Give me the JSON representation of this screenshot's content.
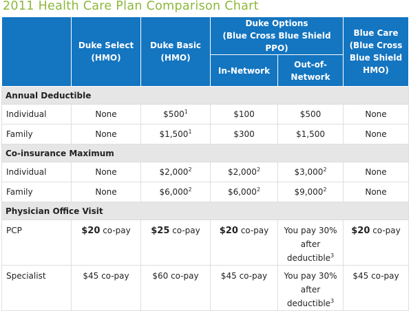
{
  "title": "2011 Health Care Plan Comparison Chart",
  "header": {
    "duke_select": [
      "Duke Select",
      "(HMO)"
    ],
    "duke_basic": [
      "Duke Basic",
      "(HMO)"
    ],
    "duke_options": [
      "Duke Options",
      "(Blue Cross Blue Shield PPO)"
    ],
    "in_network": "In-Network",
    "out_network": [
      "Out-of-",
      "Network"
    ],
    "blue_care": [
      "Blue Care",
      "(Blue Cross",
      "Blue Shield",
      "HMO)"
    ]
  },
  "sections": {
    "annual_deductible": "Annual Deductible",
    "coinsurance_max": "Co-insurance Maximum",
    "physician_visit": "Physician Office Visit"
  },
  "rows": {
    "ded_individual": {
      "label": "Individual",
      "select": "None",
      "basic": "$500",
      "basic_sup": "1",
      "in": "$100",
      "out": "$500",
      "care": "None"
    },
    "ded_family": {
      "label": "Family",
      "select": "None",
      "basic": "$1,500",
      "basic_sup": "1",
      "in": "$300",
      "out": "$1,500",
      "care": "None"
    },
    "co_individual": {
      "label": "Individual",
      "select": "None",
      "basic": "$2,000",
      "basic_sup": "2",
      "in": "$2,000",
      "in_sup": "2",
      "out": "$3,000",
      "out_sup": "2",
      "care": "None"
    },
    "co_family": {
      "label": "Family",
      "select": "None",
      "basic": "$6,000",
      "basic_sup": "2",
      "in": "$6,000",
      "in_sup": "2",
      "out": "$9,000",
      "out_sup": "2",
      "care": "None"
    },
    "pcp": {
      "label": "PCP",
      "select_amt": "$20",
      "select_rest": " co-pay",
      "basic_amt": "$25",
      "basic_rest": " co-pay",
      "in_amt": "$20",
      "in_rest": " co-pay",
      "out": [
        "You pay 30%",
        "after",
        "deductible"
      ],
      "out_sup": "3",
      "care_amt": "$20",
      "care_rest": " co-pay"
    },
    "specialist": {
      "label": "Specialist",
      "select": "$45 co-pay",
      "basic": "$60 co-pay",
      "in": "$45 co-pay",
      "out": [
        "You pay 30%",
        "after",
        "deductible"
      ],
      "out_sup": "3",
      "care": "$45 co-pay"
    }
  }
}
